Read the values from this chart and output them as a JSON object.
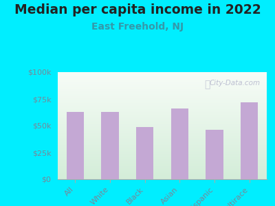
{
  "title": "Median per capita income in 2022",
  "subtitle": "East Freehold, NJ",
  "categories": [
    "All",
    "White",
    "Black",
    "Asian",
    "Hispanic",
    "Multirace"
  ],
  "values": [
    63000,
    63000,
    49000,
    66000,
    46000,
    72000
  ],
  "bar_color": "#c4a8d4",
  "title_fontsize": 13.5,
  "subtitle_fontsize": 10,
  "subtitle_color": "#3399aa",
  "title_color": "#222222",
  "background_outer": "#00eeff",
  "ytick_labels": [
    "$0",
    "$25k",
    "$50k",
    "$75k",
    "$100k"
  ],
  "ytick_values": [
    0,
    25000,
    50000,
    75000,
    100000
  ],
  "ylim": [
    0,
    100000
  ],
  "watermark": "City-Data.com",
  "tick_label_color": "#778899",
  "xlabel_color": "#778899"
}
